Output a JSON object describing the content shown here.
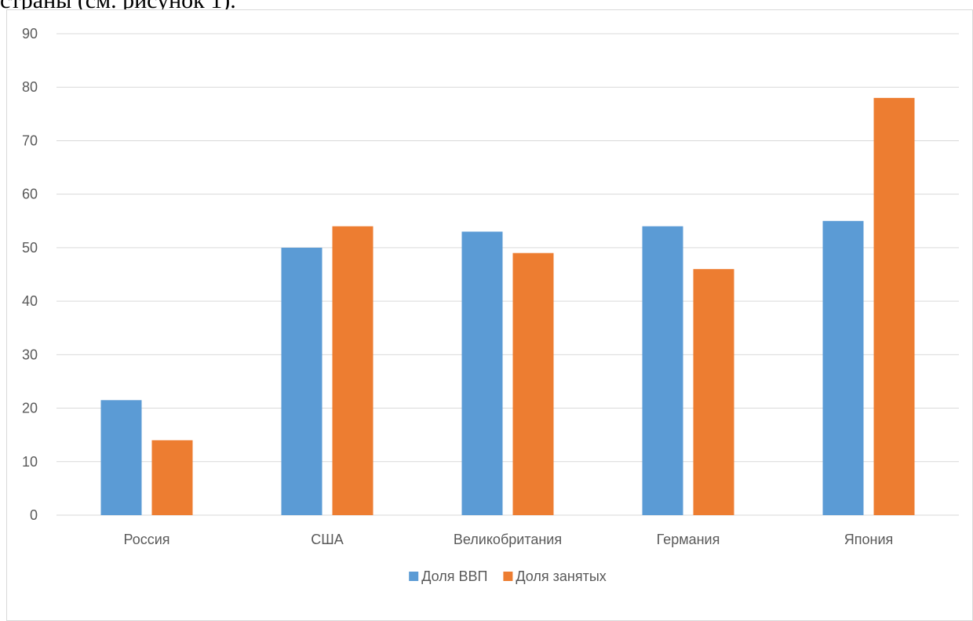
{
  "document": {
    "text_fragment": "страны (см. рисунок 1)."
  },
  "chart_data": {
    "type": "bar",
    "categories": [
      "Россия",
      "США",
      "Великобритания",
      "Германия",
      "Япония"
    ],
    "series": [
      {
        "name": "Доля ВВП",
        "values": [
          21.5,
          50,
          53,
          54,
          55
        ],
        "color": "#5b9bd5"
      },
      {
        "name": "Доля занятых",
        "values": [
          14,
          54,
          49,
          46,
          78
        ],
        "color": "#ed7d31"
      }
    ],
    "ylim": [
      0,
      90
    ],
    "yticks": [
      0,
      10,
      20,
      30,
      40,
      50,
      60,
      70,
      80,
      90
    ],
    "grid": true,
    "gridline_color": "#d9d9d9",
    "legend_position": "bottom",
    "title": "",
    "xlabel": "",
    "ylabel": ""
  }
}
